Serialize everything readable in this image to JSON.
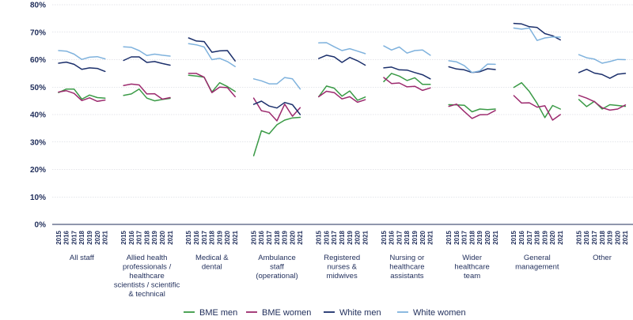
{
  "chart_data": {
    "type": "line",
    "y_axis": {
      "min": 0,
      "max": 80,
      "ticks": [
        0,
        10,
        20,
        30,
        40,
        50,
        60,
        70,
        80
      ],
      "tick_labels": [
        "0%",
        "10%",
        "20%",
        "30%",
        "40%",
        "50%",
        "60%",
        "70%",
        "80%"
      ]
    },
    "years": [
      "2015",
      "2016",
      "2017",
      "2018",
      "2019",
      "2020",
      "2021"
    ],
    "groups": [
      {
        "label": [
          "All staff"
        ]
      },
      {
        "label": [
          "Allied health",
          "professionals /",
          "healthcare",
          "scientists / scientific",
          "& technical"
        ]
      },
      {
        "label": [
          "Medical &",
          "dental"
        ]
      },
      {
        "label": [
          "Ambulance",
          "staff",
          "(operational)"
        ]
      },
      {
        "label": [
          "Registered",
          "nurses &",
          "midwives"
        ]
      },
      {
        "label": [
          "Nursing or",
          "healthcare",
          "assistants"
        ]
      },
      {
        "label": [
          "Wider",
          "healthcare",
          "team"
        ]
      },
      {
        "label": [
          "General",
          "management"
        ]
      },
      {
        "label": [
          "Other"
        ]
      }
    ],
    "series": [
      {
        "name": "BME men",
        "color": "#3a9a46",
        "values": [
          [
            48.0,
            49.3,
            49.3,
            45.6,
            47.1,
            46.2,
            46.0
          ],
          [
            47.0,
            47.5,
            49.3,
            46.0,
            45.0,
            45.5,
            45.9
          ],
          [
            54.3,
            54.0,
            53.6,
            48.2,
            51.6,
            50.2,
            48.4
          ],
          [
            25.0,
            34.1,
            33.0,
            36.3,
            38.0,
            38.8,
            39.0
          ],
          [
            46.5,
            50.4,
            49.6,
            46.7,
            48.6,
            45.2,
            46.4
          ],
          [
            52.0,
            55.0,
            54.0,
            52.4,
            53.4,
            51.0,
            51.0
          ],
          [
            43.6,
            43.5,
            43.4,
            41.0,
            42.0,
            41.8,
            42.0
          ],
          [
            49.9,
            51.6,
            48.4,
            44.1,
            38.9,
            43.3,
            42.0
          ],
          [
            45.5,
            42.9,
            44.8,
            42.0,
            43.6,
            43.3,
            43.0
          ]
        ]
      },
      {
        "name": "BME women",
        "color": "#9c2a6e",
        "values": [
          [
            48.2,
            48.7,
            47.7,
            45.1,
            46.1,
            44.8,
            45.3
          ],
          [
            50.6,
            51.1,
            50.8,
            47.5,
            47.6,
            45.6,
            46.2
          ],
          [
            55.0,
            55.0,
            53.6,
            48.0,
            50.0,
            49.8,
            46.5
          ],
          [
            46.0,
            41.4,
            40.8,
            37.7,
            43.8,
            39.4,
            42.5
          ],
          [
            46.5,
            48.5,
            48.0,
            45.7,
            46.5,
            44.5,
            45.4
          ],
          [
            53.5,
            51.3,
            51.5,
            50.1,
            50.3,
            48.8,
            49.7
          ],
          [
            43.0,
            43.8,
            41.1,
            38.6,
            39.9,
            40.0,
            41.5
          ],
          [
            46.9,
            44.2,
            44.3,
            42.7,
            43.2,
            38.0,
            40.0
          ],
          [
            47.0,
            46.0,
            44.7,
            42.5,
            41.6,
            42.0,
            43.5
          ]
        ]
      },
      {
        "name": "White men",
        "color": "#1b2f6b",
        "values": [
          [
            58.7,
            59.1,
            58.3,
            56.5,
            57.0,
            56.8,
            55.7
          ],
          [
            59.7,
            61.0,
            61.0,
            59.0,
            59.3,
            58.6,
            58.0
          ],
          [
            67.9,
            66.8,
            66.6,
            62.7,
            63.2,
            63.3,
            59.5
          ],
          [
            43.7,
            44.9,
            43.1,
            42.4,
            44.4,
            43.6,
            40.0
          ],
          [
            60.4,
            61.6,
            61.0,
            59.0,
            60.8,
            59.6,
            58.0
          ],
          [
            57.0,
            57.3,
            56.3,
            56.2,
            55.3,
            54.5,
            53.0
          ],
          [
            57.4,
            56.6,
            56.3,
            55.3,
            55.6,
            56.7,
            56.4
          ],
          [
            73.2,
            73.0,
            72.0,
            71.7,
            69.5,
            68.7,
            67.2
          ],
          [
            55.3,
            56.5,
            55.1,
            54.6,
            53.2,
            54.7,
            55.0
          ]
        ]
      },
      {
        "name": "White women",
        "color": "#7fb2dd",
        "values": [
          [
            63.3,
            63.1,
            62.0,
            60.1,
            60.9,
            61.1,
            60.3
          ],
          [
            64.7,
            64.5,
            63.3,
            61.5,
            62.0,
            61.6,
            61.3
          ],
          [
            65.8,
            65.4,
            64.6,
            60.0,
            60.5,
            59.3,
            57.5
          ],
          [
            53.0,
            52.3,
            51.2,
            51.2,
            53.5,
            53.0,
            49.3
          ],
          [
            66.1,
            66.2,
            64.7,
            63.3,
            64.0,
            63.1,
            62.2
          ],
          [
            65.0,
            63.5,
            64.6,
            62.4,
            63.3,
            63.5,
            61.6
          ],
          [
            59.6,
            59.2,
            57.8,
            55.3,
            55.9,
            58.4,
            58.3
          ],
          [
            71.5,
            71.1,
            71.5,
            67.0,
            67.9,
            68.3,
            68.2
          ],
          [
            61.8,
            60.7,
            60.2,
            58.7,
            59.3,
            60.1,
            60.0
          ]
        ]
      }
    ],
    "grid": true,
    "legend": "bottom"
  }
}
